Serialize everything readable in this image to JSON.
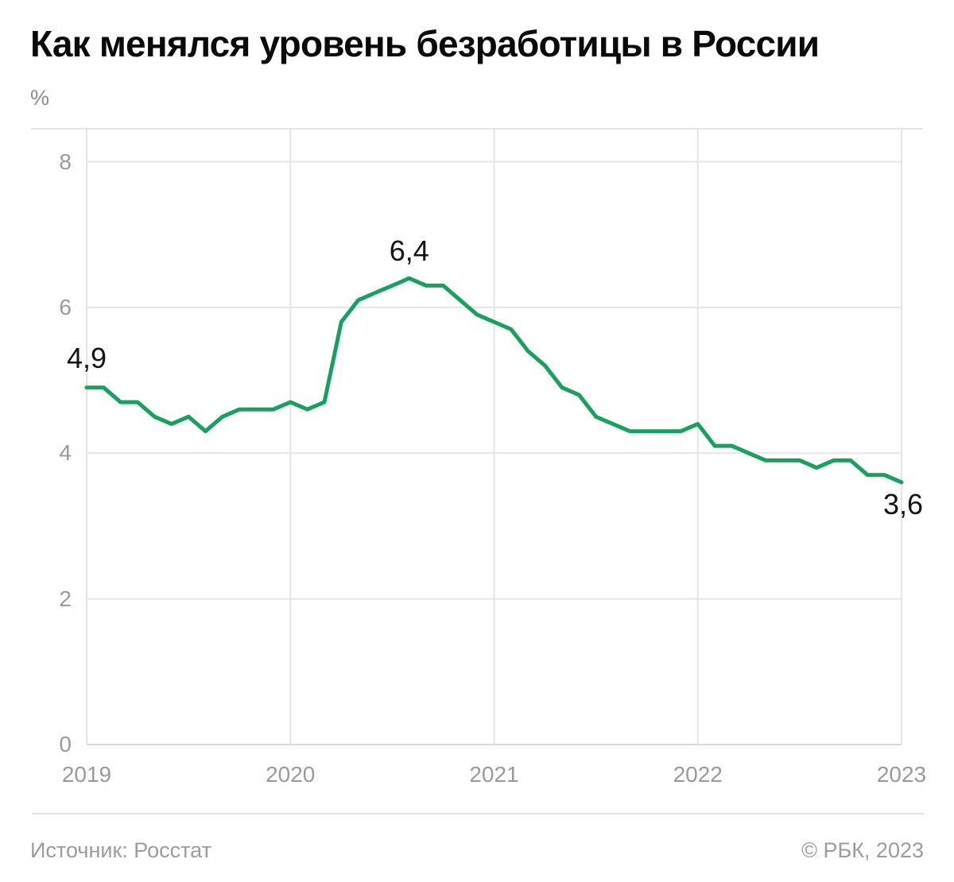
{
  "title": "Как менялся уровень безработицы в России",
  "unit_label": "%",
  "annotations": {
    "start": "4,9",
    "peak": "6,4",
    "end": "3,6"
  },
  "footer": {
    "source": "Источник: Росстат",
    "copyright": "© РБК, 2023"
  },
  "colors": {
    "line": "#17a05e",
    "grid": "#e5e5e5",
    "zero_axis": "#d8d8d8",
    "tick_text": "#9a9a9a",
    "title_text": "#0a0a0a",
    "label_text": "#141414"
  },
  "chart_data": {
    "type": "line",
    "title": "Как менялся уровень безработицы в России",
    "ylabel": "%",
    "ylim": [
      0,
      8.45
    ],
    "grid": true,
    "legend": "none",
    "x_unit": "month",
    "x_start": "2019-01",
    "x_end": "2023-01",
    "x_tick_labels": [
      "2019",
      "2020",
      "2021",
      "2022",
      "2023"
    ],
    "y_ticks": [
      8,
      6,
      4,
      2,
      0
    ],
    "y_tick_labels": [
      "8",
      "6",
      "4",
      "2",
      "0"
    ],
    "series": [
      {
        "name": "Уровень безработицы, %",
        "values": [
          4.9,
          4.9,
          4.7,
          4.7,
          4.5,
          4.4,
          4.5,
          4.3,
          4.5,
          4.6,
          4.6,
          4.6,
          4.7,
          4.6,
          4.7,
          5.8,
          6.1,
          6.2,
          6.3,
          6.4,
          6.3,
          6.3,
          6.1,
          5.9,
          5.8,
          5.7,
          5.4,
          5.2,
          4.9,
          4.8,
          4.5,
          4.4,
          4.3,
          4.3,
          4.3,
          4.3,
          4.4,
          4.1,
          4.1,
          4.0,
          3.9,
          3.9,
          3.9,
          3.8,
          3.9,
          3.9,
          3.7,
          3.7,
          3.6
        ]
      }
    ],
    "point_labels": [
      {
        "index": 0,
        "text": "4,9",
        "position": "above"
      },
      {
        "index": 19,
        "text": "6,4",
        "position": "above"
      },
      {
        "index": 48,
        "text": "3,6",
        "position": "below"
      }
    ]
  }
}
